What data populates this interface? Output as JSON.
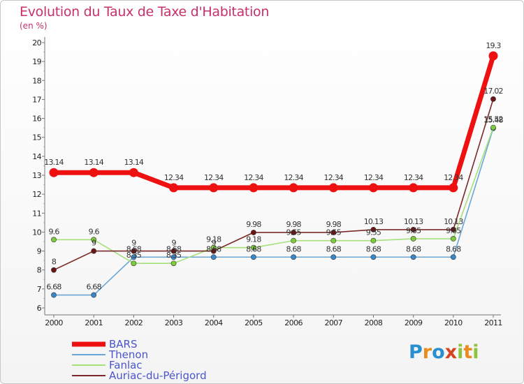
{
  "header": {
    "title": "Evolution du Taux de Taxe d'Habitation",
    "subtitle": "(en %)"
  },
  "logo": {
    "letters": [
      "P",
      "r",
      "o",
      "x",
      "i",
      "t",
      "i"
    ]
  },
  "chart_data": {
    "type": "line",
    "title": "Evolution du Taux de Taxe d'Habitation",
    "ylabel": "(en %)",
    "xlabel": "",
    "ylim": [
      6,
      20
    ],
    "yticks": [
      6,
      7,
      8,
      9,
      10,
      11,
      12,
      13,
      14,
      15,
      16,
      17,
      18,
      19,
      20
    ],
    "x": [
      "2000",
      "2001",
      "2002",
      "2003",
      "2004",
      "2005",
      "2006",
      "2007",
      "2008",
      "2009",
      "2010",
      "2011"
    ],
    "grid": false,
    "legend_position": "bottom-left",
    "series": [
      {
        "name": "BARS",
        "color": "#ee1111",
        "emphasis": true,
        "values": [
          13.14,
          13.14,
          13.14,
          12.34,
          12.34,
          12.34,
          12.34,
          12.34,
          12.34,
          12.34,
          12.34,
          19.3
        ],
        "labels": [
          "13.14",
          "13.14",
          "13.14",
          "12.34",
          "12.34",
          "12.34",
          "12.34",
          "12.34",
          "12.34",
          "12.34",
          "12.34",
          "19.3"
        ]
      },
      {
        "name": "Thenon",
        "color": "#6aa6d6",
        "marker": "#3a86c6",
        "values": [
          6.68,
          6.68,
          8.68,
          8.68,
          8.68,
          8.68,
          8.68,
          8.68,
          8.68,
          8.68,
          8.68,
          15.48
        ],
        "labels": [
          "6.68",
          "6.68",
          "8.68",
          "8.68",
          "8.68",
          "8.68",
          "8.68",
          "8.68",
          "8.68",
          "8.68",
          "8.68",
          "15.48"
        ]
      },
      {
        "name": "Fanlac",
        "color": "#a6e07a",
        "marker": "#7ccc3c",
        "values": [
          9.6,
          9.6,
          8.35,
          8.35,
          9.18,
          9.18,
          9.55,
          9.55,
          9.55,
          9.65,
          9.65,
          15.52
        ],
        "labels": [
          "9.6",
          "9.6",
          "8.35",
          "8.35",
          "9.18",
          "9.18",
          "9.55",
          "9.55",
          "9.55",
          "9.65",
          "9.65",
          "15.52"
        ]
      },
      {
        "name": "Auriac-du-Périgord",
        "color": "#7a2a2a",
        "marker": "#6a1616",
        "values": [
          8,
          9,
          9,
          9,
          9,
          9.98,
          9.98,
          9.98,
          10.13,
          10.13,
          10.13,
          17.02
        ],
        "labels": [
          "8",
          "9",
          "9",
          "9",
          "9",
          "9.98",
          "9.98",
          "9.98",
          "10.13",
          "10.13",
          "10.13",
          "17.02"
        ]
      }
    ]
  }
}
